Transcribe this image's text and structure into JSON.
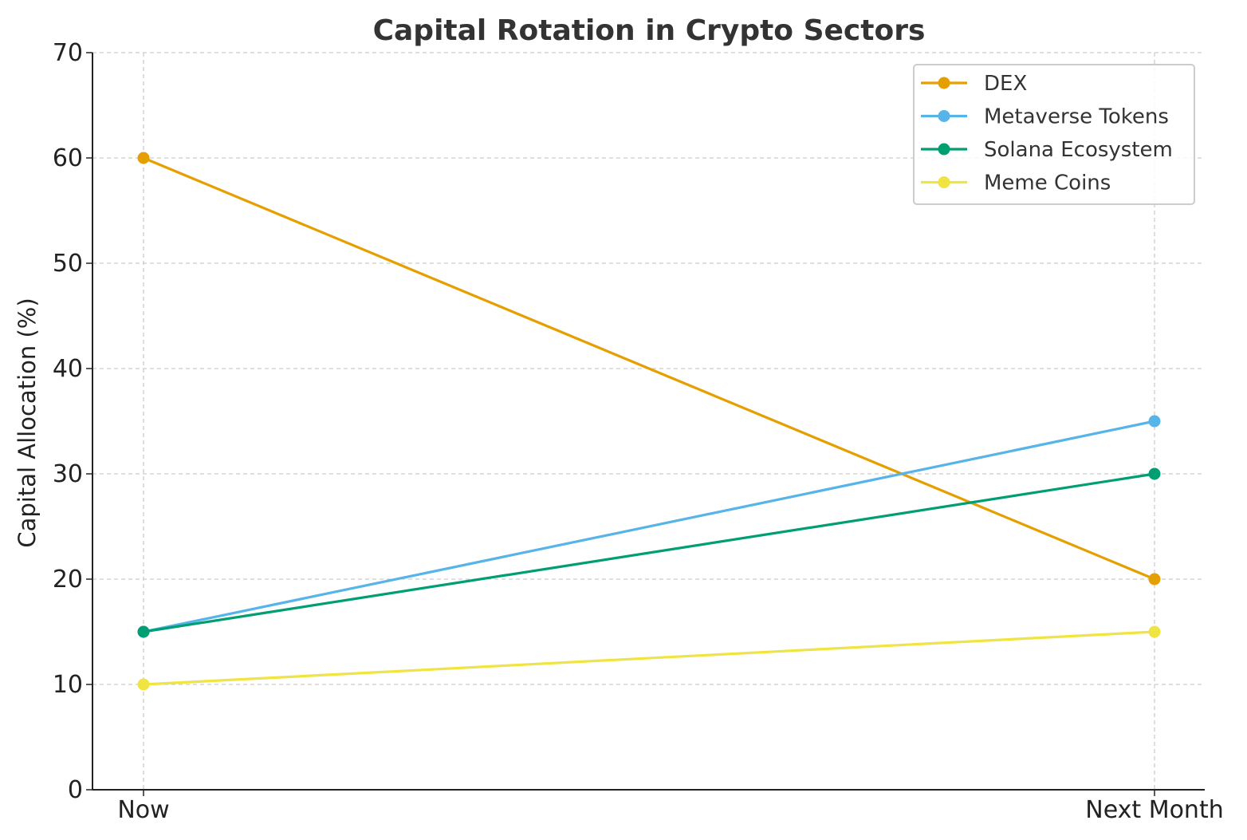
{
  "chart_data": {
    "type": "line",
    "title": "Capital Rotation in Crypto Sectors",
    "xlabel": "",
    "ylabel": "Capital Allocation (%)",
    "categories": [
      "Now",
      "Next Month"
    ],
    "ylim": [
      0,
      70
    ],
    "yticks": [
      "0",
      "10",
      "20",
      "30",
      "40",
      "50",
      "60",
      "70"
    ],
    "grid": true,
    "legend_position": "top-right",
    "series": [
      {
        "name": "DEX",
        "color": "#E69F00",
        "values": [
          60,
          20
        ]
      },
      {
        "name": "Metaverse Tokens",
        "color": "#56B4E9",
        "values": [
          15,
          35
        ]
      },
      {
        "name": "Solana Ecosystem",
        "color": "#009E73",
        "values": [
          15,
          30
        ]
      },
      {
        "name": "Meme Coins",
        "color": "#F0E442",
        "values": [
          10,
          15
        ]
      }
    ]
  }
}
